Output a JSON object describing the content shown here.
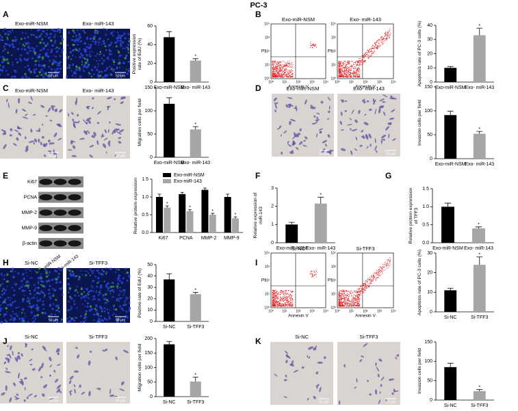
{
  "title": "PC-3",
  "chart_data": [
    {
      "type": "bar",
      "panel": "A",
      "ylabel": [
        "Positive expression",
        "rate of EdU (%)"
      ],
      "categories": [
        "Exo-miR-NSM",
        "Exo- miR-143"
      ],
      "values": [
        48,
        23
      ],
      "errors": [
        6,
        2
      ],
      "colors": [
        "#000000",
        "#a6a6a6"
      ],
      "ylim": [
        0,
        60
      ],
      "yticks": [
        0,
        20,
        40,
        60
      ],
      "annotation": "*"
    },
    {
      "type": "bar",
      "panel": "B",
      "ylabel": [
        "Apoptosis rate of PC-3 cells (%)"
      ],
      "categories": [
        "Exo-miR-NSM",
        "Exo- miR-143"
      ],
      "values": [
        10,
        33
      ],
      "errors": [
        1,
        5
      ],
      "colors": [
        "#000000",
        "#a6a6a6"
      ],
      "ylim": [
        0,
        40
      ],
      "yticks": [
        0,
        10,
        20,
        30,
        40
      ],
      "annotation": "*"
    },
    {
      "type": "bar",
      "panel": "C",
      "ylabel": [
        "Migration cells per field"
      ],
      "categories": [
        "Exo-miR-NSM",
        "Exo- miR-143"
      ],
      "values": [
        115,
        60
      ],
      "errors": [
        13,
        6
      ],
      "colors": [
        "#000000",
        "#a6a6a6"
      ],
      "ylim": [
        0,
        150
      ],
      "yticks": [
        0,
        50,
        100,
        150
      ],
      "annotation": "*"
    },
    {
      "type": "bar",
      "panel": "D",
      "ylabel": [
        "Invasion cells per field"
      ],
      "categories": [
        "Exo-miR-NSM",
        "Exo- miR-143"
      ],
      "values": [
        91,
        52
      ],
      "errors": [
        8,
        5
      ],
      "colors": [
        "#000000",
        "#a6a6a6"
      ],
      "ylim": [
        0,
        150
      ],
      "yticks": [
        0,
        50,
        100,
        150
      ],
      "annotation": "*"
    },
    {
      "type": "grouped-bar",
      "panel": "E",
      "ylabel": [
        "Relative protein expression"
      ],
      "categories": [
        "Ki67",
        "PCNA",
        "MMP-2",
        "MMP-9"
      ],
      "series": [
        {
          "name": "Exo-miR-NSM",
          "color": "#000000",
          "values": [
            1.0,
            1.08,
            1.2,
            1.0
          ],
          "errors": [
            0.08,
            0.05,
            0.05,
            0.08
          ]
        },
        {
          "name": "Exo-miR-143",
          "color": "#a6a6a6",
          "values": [
            0.7,
            0.6,
            0.5,
            0.4
          ],
          "errors": [
            0.05,
            0.04,
            0.04,
            0.04
          ]
        }
      ],
      "ylim": [
        0,
        1.5
      ],
      "yticks": [
        {
          "value": 0,
          "label": "0.0"
        },
        {
          "value": 0.5,
          "label": "0.5"
        },
        {
          "value": 1,
          "label": "1.0"
        },
        {
          "value": 1.5,
          "label": "1.5"
        }
      ],
      "legend": "top-left",
      "annotation": "*"
    },
    {
      "type": "bar",
      "panel": "F",
      "ylabel": [
        "Relative expression of",
        "miR-143"
      ],
      "categories": [
        "Exo-miR-NSM",
        "Exo- miR-143"
      ],
      "values": [
        1.0,
        2.15
      ],
      "errors": [
        0.12,
        0.35
      ],
      "colors": [
        "#000000",
        "#a6a6a6"
      ],
      "ylim": [
        0,
        3
      ],
      "yticks": [
        0,
        1,
        2,
        3
      ],
      "annotation": "*"
    },
    {
      "type": "bar",
      "panel": "G",
      "ylabel": [
        "Relative protein expression",
        "of TFF3"
      ],
      "categories": [
        "Exo-miR-NSM",
        "Exo- miR-143"
      ],
      "values": [
        1.0,
        0.4
      ],
      "errors": [
        0.1,
        0.04
      ],
      "colors": [
        "#000000",
        "#a6a6a6"
      ],
      "ylim": [
        0,
        1.5
      ],
      "yticks": [
        {
          "value": 0,
          "label": "0.0"
        },
        {
          "value": 0.5,
          "label": "0.5"
        },
        {
          "value": 1,
          "label": "1.0"
        },
        {
          "value": 1.5,
          "label": "1.5"
        }
      ],
      "annotation": "*"
    },
    {
      "type": "bar",
      "panel": "H",
      "ylabel": [
        "Positive rate of EdU (%)"
      ],
      "categories": [
        "Si-NC",
        "Si-TFF3"
      ],
      "values": [
        37,
        24
      ],
      "errors": [
        5,
        1.5
      ],
      "colors": [
        "#000000",
        "#a6a6a6"
      ],
      "ylim": [
        0,
        50
      ],
      "yticks": [
        0,
        10,
        20,
        30,
        40,
        50
      ],
      "annotation": "*"
    },
    {
      "type": "bar",
      "panel": "I",
      "ylabel": [
        "Apoptosis rate of PC-3 cells (%)"
      ],
      "categories": [
        "Si-NC",
        "Si-TFF3"
      ],
      "values": [
        11,
        24
      ],
      "errors": [
        1,
        4
      ],
      "colors": [
        "#000000",
        "#a6a6a6"
      ],
      "ylim": [
        0,
        30
      ],
      "yticks": [
        0,
        10,
        20,
        30
      ],
      "annotation": "*"
    },
    {
      "type": "bar",
      "panel": "J",
      "ylabel": [
        "Migration cells per field"
      ],
      "categories": [
        "Si-NC",
        "Si-TFF3"
      ],
      "values": [
        180,
        52
      ],
      "errors": [
        10,
        15
      ],
      "colors": [
        "#000000",
        "#a6a6a6"
      ],
      "ylim": [
        0,
        200
      ],
      "yticks": [
        0,
        50,
        100,
        150,
        200
      ],
      "annotation": "*"
    },
    {
      "type": "bar",
      "panel": "K",
      "ylabel": [
        "Invasion cells per field"
      ],
      "categories": [
        "Si-NC",
        "Si-TFF3"
      ],
      "values": [
        85,
        23
      ],
      "errors": [
        10,
        4
      ],
      "colors": [
        "#000000",
        "#a6a6a6"
      ],
      "ylim": [
        0,
        150
      ],
      "yticks": [
        0,
        50,
        100,
        150
      ],
      "annotation": "*"
    }
  ],
  "images": [
    {
      "caption": "Exo-miR-NSM",
      "scale": "50 μm"
    },
    {
      "caption": "Exo- miR-143",
      "scale": "50 μm"
    },
    {
      "caption": "Exo-miR-NSM",
      "scale": "50 μm"
    },
    {
      "caption": "Exo- miR-143",
      "scale": "50 μm"
    },
    {
      "caption": "Exo-miR-NSM",
      "scale": "50 μm"
    },
    {
      "caption": "Exo- miR-143",
      "scale": "50 μm"
    },
    {
      "caption": "Si-NC",
      "scale": "50 μm"
    },
    {
      "caption": "Si-TFF3",
      "scale": "50 μm"
    },
    {
      "caption": "Si-NC",
      "scale": "50 μm"
    },
    {
      "caption": "Si-TFF3",
      "scale": "50 μm"
    },
    {
      "caption": "Si-NC",
      "scale": "50 μm"
    },
    {
      "caption": "Si-TFF3",
      "scale": "50 μm"
    }
  ],
  "flow_plots": [
    {
      "caption": "Exo-miR-NSM",
      "x_label": "Annexin V",
      "y_label": "PI",
      "ticks": [
        "10⁰",
        "10¹",
        "10²",
        "10³",
        "10⁴"
      ]
    },
    {
      "caption": "Exo- miR-143",
      "x_label": "Annexin V",
      "y_label": "PI",
      "ticks": [
        "10⁰",
        "10¹",
        "10²",
        "10³",
        "10⁴"
      ]
    },
    {
      "caption": "Si-NC",
      "x_label": "Annexin V",
      "y_label": "PI",
      "ticks": [
        "10⁰",
        "10¹",
        "10²",
        "10³",
        "10⁴"
      ]
    },
    {
      "caption": "Si-TFF3",
      "x_label": "Annexin V",
      "y_label": "PI",
      "ticks": [
        "10⁰",
        "10¹",
        "10²",
        "10³",
        "10⁴"
      ]
    }
  ],
  "western_blot": {
    "proteins": [
      "Ki67",
      "PCNA",
      "MMP-2",
      "MMP-9",
      "β-actin"
    ],
    "lanes": [
      "Exo-miR-NSM",
      "Exo-miR-143"
    ]
  }
}
